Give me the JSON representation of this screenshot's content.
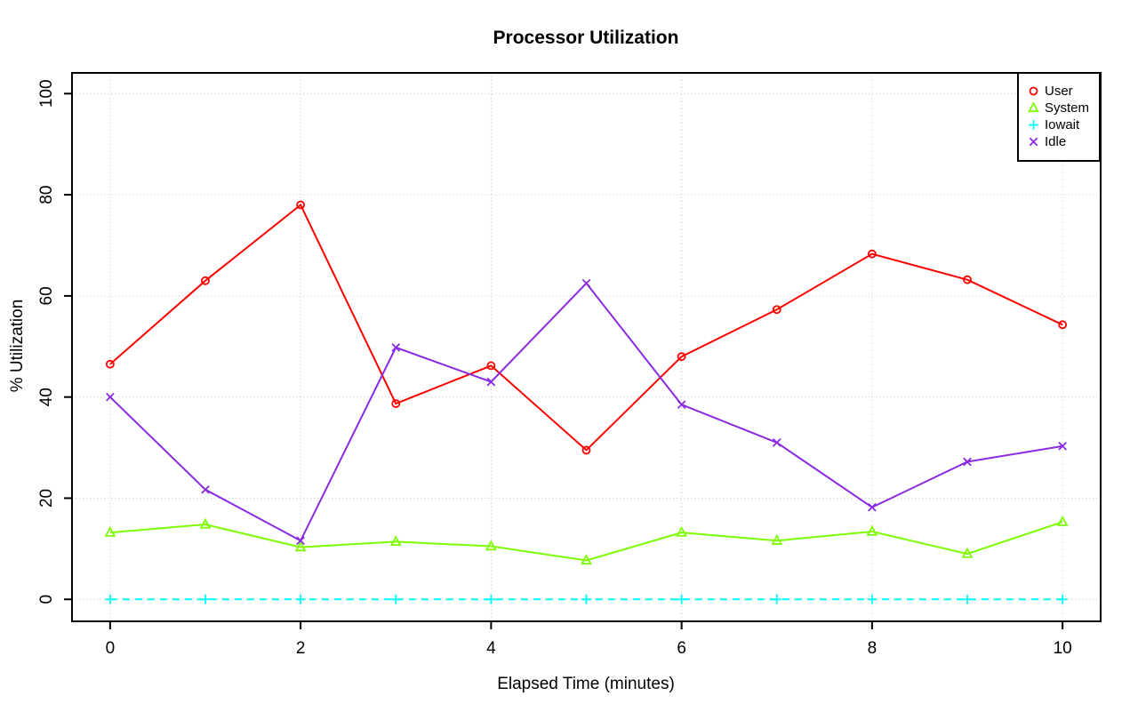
{
  "chart_data": {
    "type": "line",
    "title": "Processor Utilization",
    "xlabel": "Elapsed Time (minutes)",
    "ylabel": "% Utilization",
    "x": [
      0,
      1,
      2,
      3,
      4,
      5,
      6,
      7,
      8,
      9,
      10
    ],
    "x_ticks": [
      0,
      2,
      4,
      6,
      8,
      10
    ],
    "y_ticks": [
      0,
      20,
      40,
      60,
      80,
      100
    ],
    "xlim": [
      -0.4,
      10.4
    ],
    "ylim": [
      -4.35,
      104.1
    ],
    "grid": "dotted",
    "legend_position": "top-right",
    "series": [
      {
        "name": "User",
        "color": "#FF0000",
        "marker": "circle",
        "line": "solid",
        "values": [
          46.5,
          63.0,
          78.0,
          38.7,
          46.2,
          29.5,
          48.0,
          57.3,
          68.3,
          63.2,
          54.3
        ]
      },
      {
        "name": "System",
        "color": "#7CFC00",
        "marker": "triangle",
        "line": "solid",
        "values": [
          13.2,
          14.8,
          10.3,
          11.4,
          10.5,
          7.7,
          13.2,
          11.6,
          13.4,
          9.0,
          15.3
        ]
      },
      {
        "name": "Iowait",
        "color": "#00FFFF",
        "marker": "plus",
        "line": "dashed",
        "values": [
          0,
          0,
          0,
          0,
          0,
          0,
          0,
          0,
          0,
          0,
          0
        ]
      },
      {
        "name": "Idle",
        "color": "#8A2BE2",
        "marker": "x",
        "line": "solid",
        "values": [
          40.0,
          21.7,
          11.6,
          49.8,
          43.0,
          62.5,
          38.5,
          31.0,
          18.2,
          27.2,
          30.3
        ]
      }
    ]
  },
  "colors": {
    "frame": "#000000",
    "grid": "#C3C3C3",
    "text": "#000000",
    "background": "#FFFFFF"
  }
}
